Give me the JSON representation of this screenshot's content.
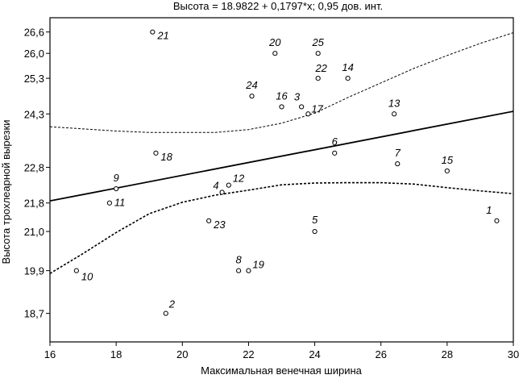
{
  "chart_data": {
    "type": "scatter",
    "title": "Высота = 18.9822 + 0,1797*x; 0,95 дов. инт.",
    "xlabel": "Максимальная венечная ширина",
    "ylabel": "Высота трохлеарной вырезки",
    "xlim": [
      16,
      30
    ],
    "ylim": [
      17.9,
      27.0
    ],
    "x_ticks": [
      "16",
      "18",
      "20",
      "22",
      "24",
      "26",
      "28",
      "30"
    ],
    "y_ticks": [
      "18,7",
      "19,9",
      "21,0",
      "21,8",
      "22,8",
      "24,3",
      "25,3",
      "26,0",
      "26,6"
    ],
    "y_tick_values": [
      18.7,
      19.9,
      21.0,
      21.8,
      22.8,
      24.3,
      25.3,
      26.0,
      26.6
    ],
    "regression": {
      "intercept": 18.9822,
      "slope": 0.1797
    },
    "confidence_band": {
      "level": 0.95,
      "x": [
        16,
        17,
        18,
        19,
        20,
        21,
        22,
        23,
        24,
        25,
        26,
        27,
        28,
        29,
        30
      ],
      "upper": [
        23.94,
        23.88,
        23.82,
        23.78,
        23.78,
        23.78,
        23.86,
        24.04,
        24.32,
        24.76,
        25.17,
        25.58,
        25.94,
        26.28,
        26.58
      ],
      "lower": [
        19.82,
        20.38,
        20.97,
        21.5,
        21.82,
        22.02,
        22.16,
        22.31,
        22.36,
        22.37,
        22.37,
        22.33,
        22.23,
        22.14,
        22.06
      ]
    },
    "points": [
      {
        "label": "1",
        "x": 29.5,
        "y": 21.3
      },
      {
        "label": "2",
        "x": 19.5,
        "y": 18.7
      },
      {
        "label": "3",
        "x": 23.6,
        "y": 24.5
      },
      {
        "label": "4",
        "x": 21.2,
        "y": 22.1
      },
      {
        "label": "5",
        "x": 24.0,
        "y": 21.0
      },
      {
        "label": "6",
        "x": 24.6,
        "y": 23.2
      },
      {
        "label": "7",
        "x": 26.5,
        "y": 22.9
      },
      {
        "label": "8",
        "x": 21.7,
        "y": 19.9
      },
      {
        "label": "9",
        "x": 18.0,
        "y": 22.2
      },
      {
        "label": "10",
        "x": 16.8,
        "y": 19.9
      },
      {
        "label": "11",
        "x": 17.8,
        "y": 21.8
      },
      {
        "label": "12",
        "x": 21.4,
        "y": 22.3
      },
      {
        "label": "13",
        "x": 26.4,
        "y": 24.3
      },
      {
        "label": "14",
        "x": 25.0,
        "y": 25.3
      },
      {
        "label": "15",
        "x": 28.0,
        "y": 22.7
      },
      {
        "label": "16",
        "x": 23.0,
        "y": 24.5
      },
      {
        "label": "17",
        "x": 23.8,
        "y": 24.3
      },
      {
        "label": "18",
        "x": 19.2,
        "y": 23.2
      },
      {
        "label": "19",
        "x": 22.0,
        "y": 19.9
      },
      {
        "label": "20",
        "x": 22.8,
        "y": 26.0
      },
      {
        "label": "21",
        "x": 19.1,
        "y": 26.6
      },
      {
        "label": "22",
        "x": 24.1,
        "y": 25.3
      },
      {
        "label": "23",
        "x": 20.8,
        "y": 21.3
      },
      {
        "label": "24",
        "x": 22.1,
        "y": 24.8
      },
      {
        "label": "25",
        "x": 24.1,
        "y": 26.0
      }
    ]
  }
}
